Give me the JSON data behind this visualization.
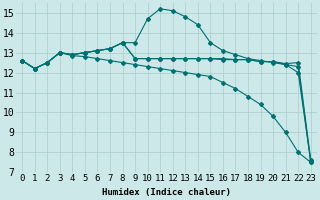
{
  "x": [
    0,
    1,
    2,
    3,
    4,
    5,
    6,
    7,
    8,
    9,
    10,
    11,
    12,
    13,
    14,
    15,
    16,
    17,
    18,
    19,
    20,
    21,
    22,
    23
  ],
  "line1": [
    12.6,
    12.2,
    12.5,
    13.0,
    12.9,
    13.0,
    13.1,
    13.2,
    13.5,
    13.5,
    14.7,
    15.2,
    15.1,
    14.8,
    14.4,
    13.5,
    13.1,
    12.9,
    12.7,
    12.6,
    12.5,
    12.4,
    12.0,
    7.55
  ],
  "line2": [
    12.6,
    12.2,
    12.5,
    13.0,
    12.9,
    13.0,
    13.1,
    13.2,
    13.5,
    12.7,
    12.7,
    12.7,
    12.7,
    12.7,
    12.7,
    12.7,
    12.65,
    12.65,
    12.65,
    12.55,
    12.55,
    12.45,
    12.5,
    7.6
  ],
  "line3": [
    12.6,
    12.2,
    12.5,
    13.0,
    12.9,
    13.0,
    13.1,
    13.2,
    13.5,
    12.7,
    12.7,
    12.7,
    12.7,
    12.7,
    12.7,
    12.7,
    12.7,
    12.65,
    12.65,
    12.55,
    12.55,
    12.4,
    12.3,
    7.5
  ],
  "line4": [
    12.6,
    12.2,
    12.5,
    13.0,
    12.85,
    12.8,
    12.7,
    12.6,
    12.5,
    12.4,
    12.3,
    12.2,
    12.1,
    12.0,
    11.9,
    11.8,
    11.5,
    11.2,
    10.8,
    10.4,
    9.8,
    9.0,
    8.0,
    7.5
  ],
  "bg_color": "#cce8e8",
  "grid_color": "#aacccc",
  "line_color": "#007070",
  "marker_color": "#007070",
  "xlabel": "Humidex (Indice chaleur)",
  "ylim": [
    7,
    15.5
  ],
  "xlim": [
    -0.5,
    23.5
  ],
  "yticks": [
    7,
    8,
    9,
    10,
    11,
    12,
    13,
    14,
    15
  ],
  "xticks": [
    0,
    1,
    2,
    3,
    4,
    5,
    6,
    7,
    8,
    9,
    10,
    11,
    12,
    13,
    14,
    15,
    16,
    17,
    18,
    19,
    20,
    21,
    22,
    23
  ],
  "xlabel_fontsize": 6.5,
  "tick_fontsize": 6.5,
  "ytick_fontsize": 7
}
